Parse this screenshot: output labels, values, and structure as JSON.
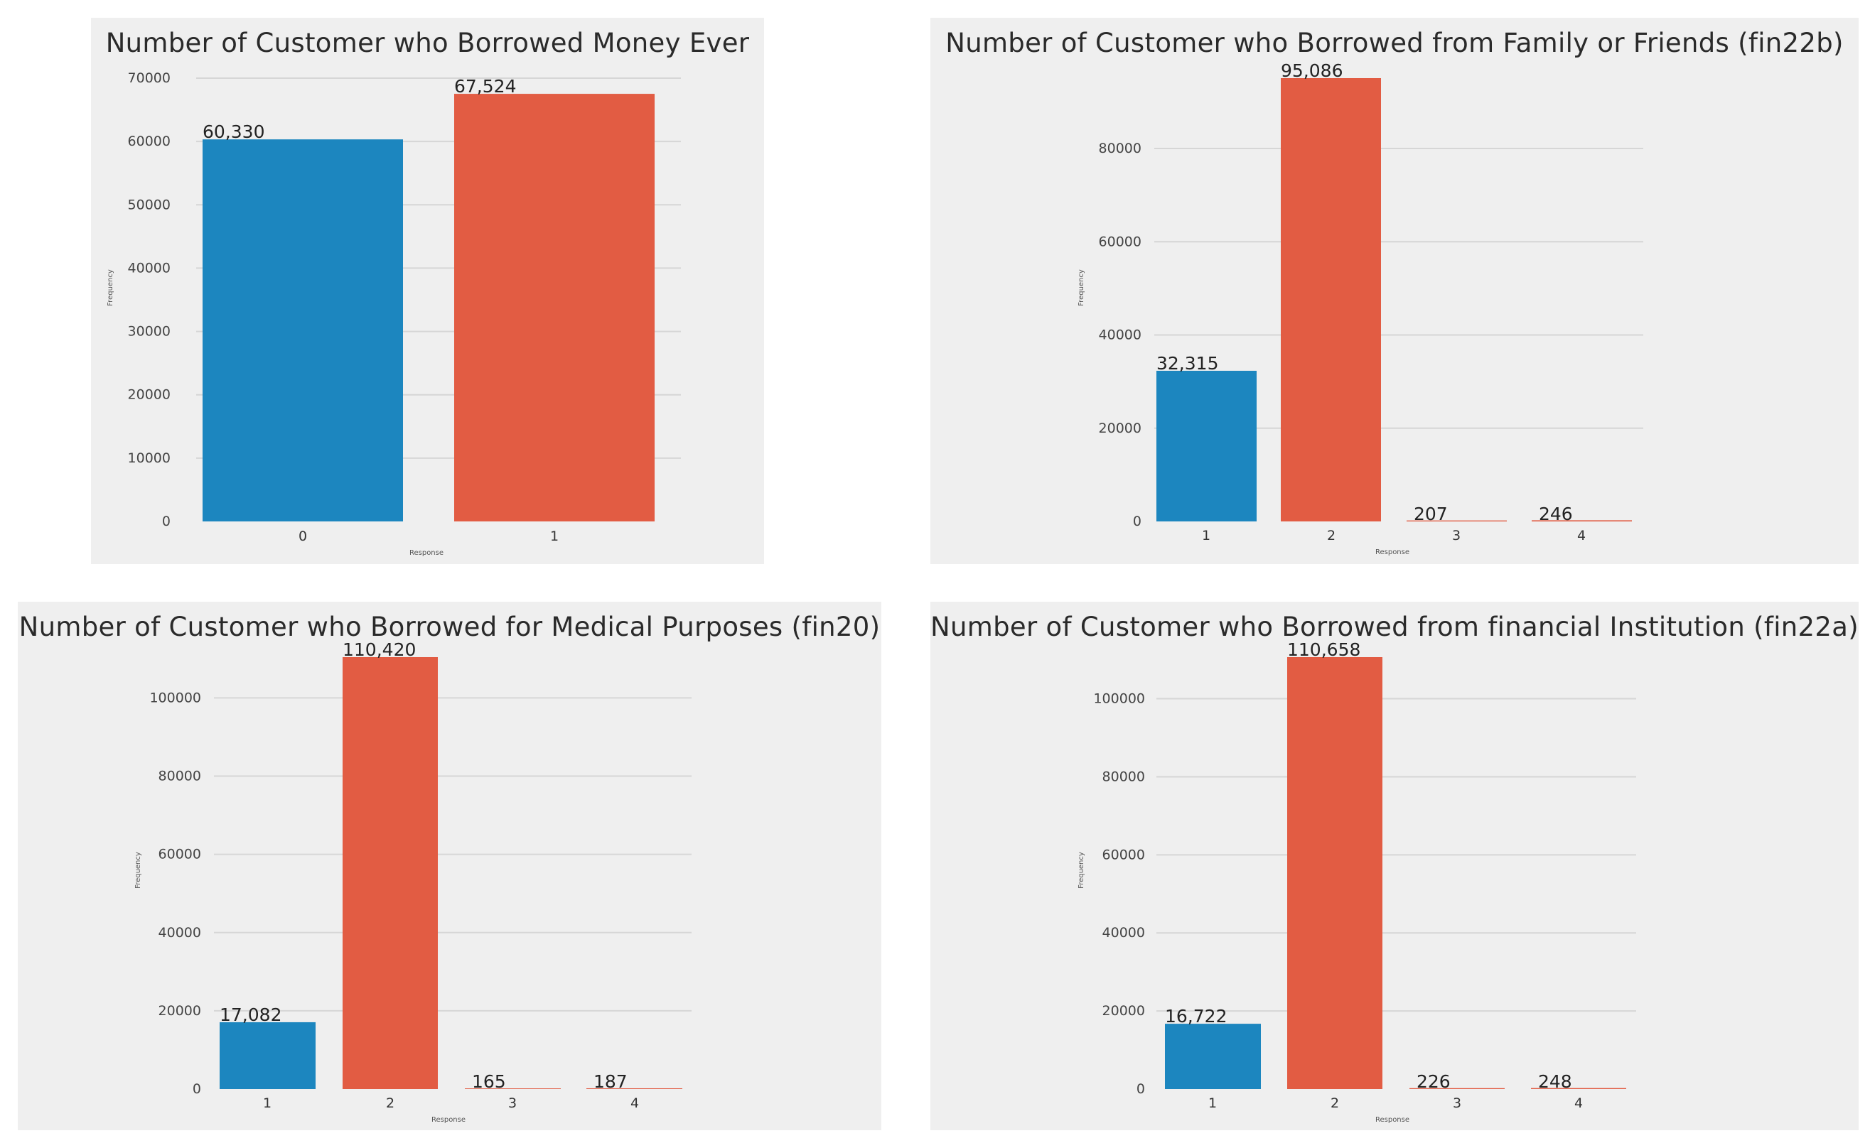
{
  "colors": {
    "blue": "#1c86bf",
    "red": "#e25c43",
    "panel": "#efefef"
  },
  "chart_data": [
    {
      "type": "bar",
      "title": "Number of Customer who Borrowed Money Ever",
      "xlabel": "Response",
      "ylabel": "Frequency",
      "categories": [
        "0",
        "1"
      ],
      "values": [
        60330,
        67524
      ],
      "value_labels": [
        "60,330",
        "67,524"
      ],
      "yticks": [
        0,
        10000,
        20000,
        30000,
        40000,
        50000,
        60000,
        70000
      ],
      "ylim": [
        0,
        70000
      ],
      "grid": true
    },
    {
      "type": "bar",
      "title": "Number of Customer who Borrowed from Family or Friends (fin22b)",
      "xlabel": "Response",
      "ylabel": "Frequency",
      "categories": [
        "1",
        "2",
        "3",
        "4"
      ],
      "values": [
        32315,
        95086,
        207,
        246
      ],
      "value_labels": [
        "32,315",
        "95,086",
        "207",
        "246"
      ],
      "yticks": [
        0,
        20000,
        40000,
        60000,
        80000
      ],
      "ylim": [
        0,
        95086
      ],
      "grid": true
    },
    {
      "type": "bar",
      "title": "Number of Customer who Borrowed for Medical Purposes (fin20)",
      "xlabel": "Response",
      "ylabel": "Frequency",
      "categories": [
        "1",
        "2",
        "3",
        "4"
      ],
      "values": [
        17082,
        110420,
        165,
        187
      ],
      "value_labels": [
        "17,082",
        "110,420",
        "165",
        "187"
      ],
      "yticks": [
        0,
        20000,
        40000,
        60000,
        80000,
        100000
      ],
      "ylim": [
        0,
        110420
      ],
      "grid": true
    },
    {
      "type": "bar",
      "title": "Number of Customer who Borrowed from financial Institution (fin22a)",
      "xlabel": "Response",
      "ylabel": "Frequency",
      "categories": [
        "1",
        "2",
        "3",
        "4"
      ],
      "values": [
        16722,
        110658,
        226,
        248
      ],
      "value_labels": [
        "16,722",
        "110,658",
        "226",
        "248"
      ],
      "yticks": [
        0,
        20000,
        40000,
        60000,
        80000,
        100000
      ],
      "ylim": [
        0,
        110658
      ],
      "grid": true
    }
  ]
}
